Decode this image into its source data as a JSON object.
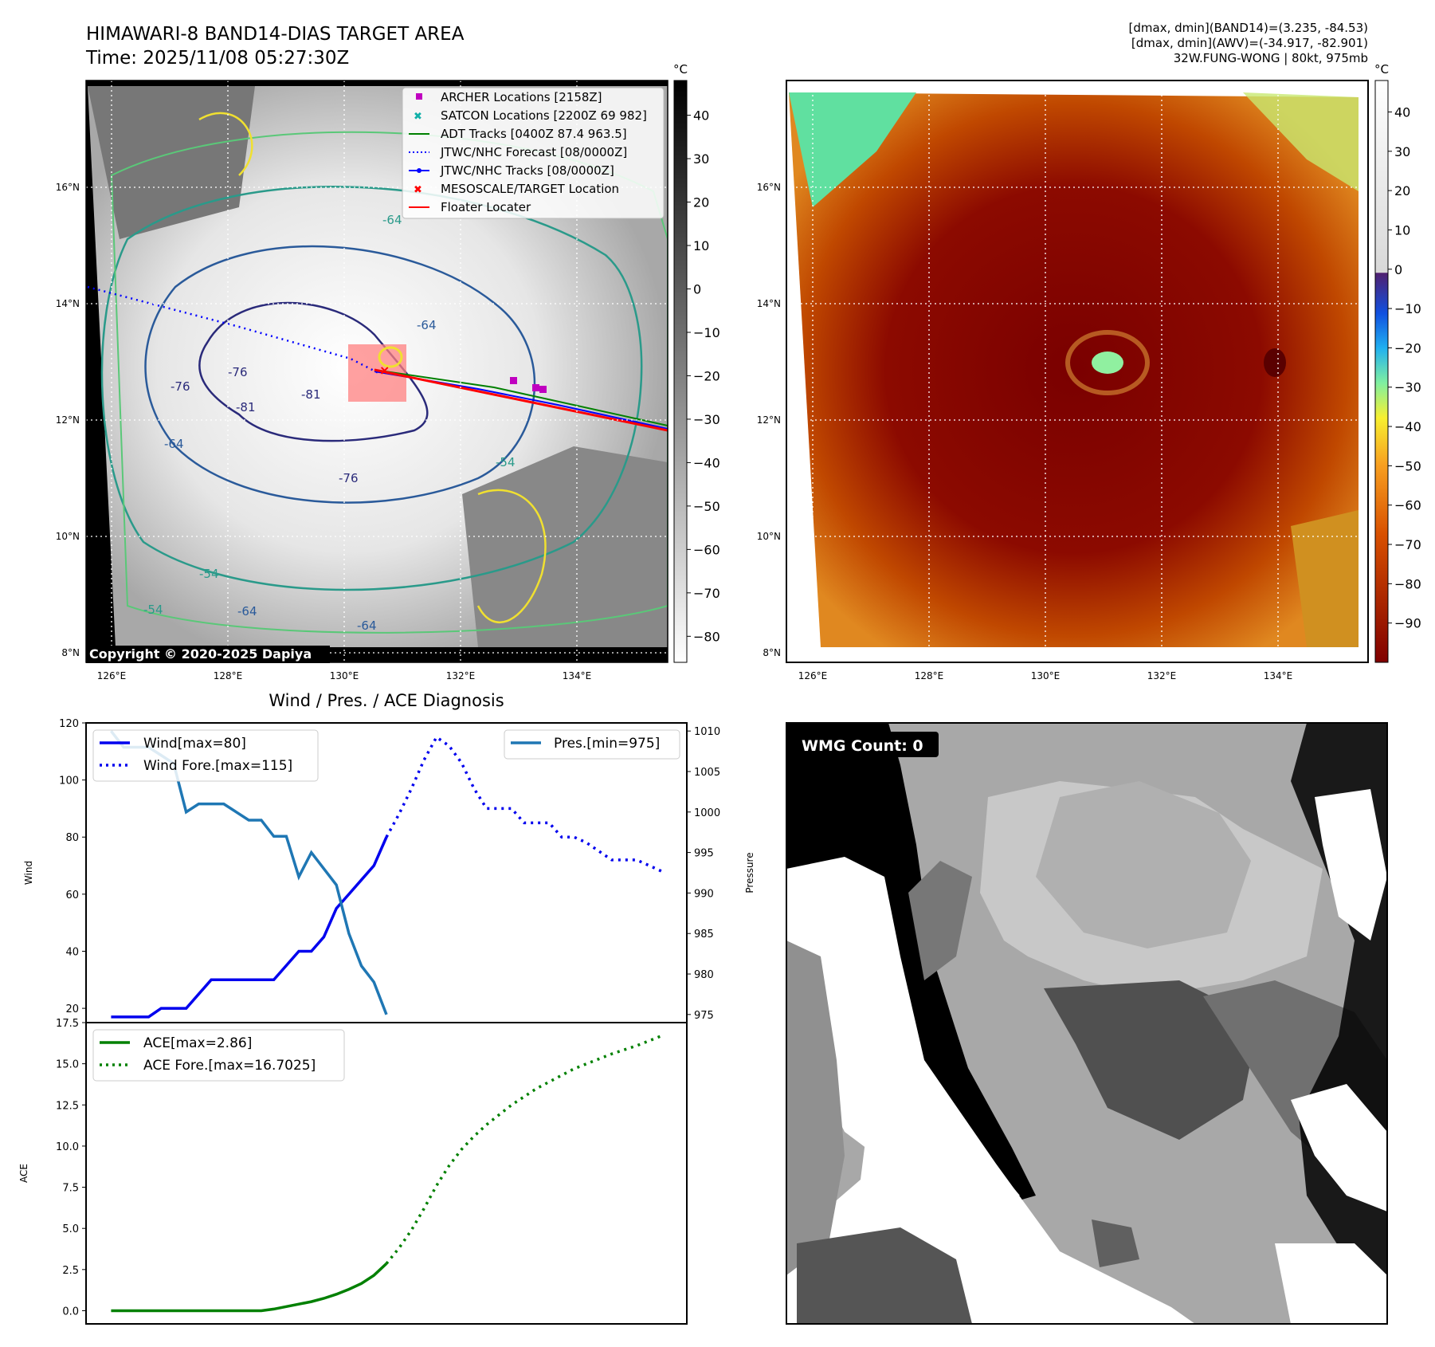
{
  "header": {
    "title_line1": "HIMAWARI-8 BAND14-DIAS TARGET AREA",
    "title_line2": "Time: 2025/11/08 05:27:30Z",
    "stats_line1": "[dmax, dmin](BAND14)=(3.235, -84.53)",
    "stats_line2": "[dmax, dmin](AWV)=(-34.917, -82.901)",
    "stats_line3": "32W.FUNG-WONG | 80kt, 975mb"
  },
  "map_axes": {
    "lon_ticks": [
      "126°E",
      "128°E",
      "130°E",
      "132°E",
      "134°E"
    ],
    "lat_ticks": [
      "16°N",
      "14°N",
      "12°N",
      "10°N",
      "8°N"
    ],
    "copyright": "Copyright © 2020-2025 Dapiya",
    "contour_labels": [
      "-64",
      "-64",
      "-76",
      "-81",
      "-81",
      "-76",
      "-76",
      "-64",
      "-54",
      "-54",
      "-64",
      "-64",
      "-54"
    ]
  },
  "legend": {
    "items": [
      {
        "label": "ARCHER Locations [2158Z]",
        "color": "#c000c0",
        "kind": "square"
      },
      {
        "label": "SATCON Locations [2200Z 69 982]",
        "color": "#10b0a8",
        "kind": "x"
      },
      {
        "label": "ADT Tracks [0400Z 87.4 963.5]",
        "color": "#008000",
        "kind": "line"
      },
      {
        "label": "JTWC/NHC Forecast [08/0000Z]",
        "color": "#0000ff",
        "kind": "dotted"
      },
      {
        "label": "JTWC/NHC Tracks [08/0000Z]",
        "color": "#0000ff",
        "kind": "dotline"
      },
      {
        "label": "MESOSCALE/TARGET Location",
        "color": "#ff0000",
        "kind": "xred"
      },
      {
        "label": "Floater Locater",
        "color": "#ff0000",
        "kind": "line"
      }
    ]
  },
  "colorbar_left": {
    "unit": "°C",
    "ticks": [
      "40",
      "30",
      "20",
      "10",
      "0",
      "−10",
      "−20",
      "−30",
      "−40",
      "−50",
      "−60",
      "−70",
      "−80"
    ]
  },
  "colorbar_right": {
    "unit": "°C",
    "ticks": [
      "40",
      "30",
      "20",
      "10",
      "0",
      "−10",
      "−20",
      "−30",
      "−40",
      "−50",
      "−60",
      "−70",
      "−80",
      "−90"
    ]
  },
  "diagnosis": {
    "title": "Wind / Pres. / ACE Diagnosis",
    "ylabel_wind": "Wind",
    "ylabel_pres": "Pressure",
    "ylabel_ace": "ACE",
    "legend_wind": "Wind[max=80]",
    "legend_wind_fore": "Wind Fore.[max=115]",
    "legend_pres": "Pres.[min=975]",
    "legend_ace": "ACE[max=2.86]",
    "legend_ace_fore": "ACE Fore.[max=16.7025]",
    "wind_ticks": [
      "20",
      "40",
      "60",
      "80",
      "100",
      "120"
    ],
    "pres_ticks": [
      "975",
      "980",
      "985",
      "990",
      "995",
      "1000",
      "1005",
      "1010"
    ],
    "ace_ticks": [
      "0.0",
      "2.5",
      "5.0",
      "7.5",
      "10.0",
      "12.5",
      "15.0",
      "17.5"
    ]
  },
  "wmg": {
    "label": "WMG Count: 0"
  },
  "colors": {
    "wind": "#0000ee",
    "pres": "#1f77b4",
    "ace": "#008000"
  },
  "chart_data": [
    {
      "type": "line",
      "title": "Wind / Pres. / ACE Diagnosis",
      "ylabel": "Wind",
      "ylim": [
        15,
        120
      ],
      "series": [
        {
          "name": "Wind[max=80]",
          "style": "solid",
          "x": [
            0,
            1,
            2,
            3,
            4,
            5,
            6,
            7,
            8,
            9,
            10,
            11,
            12,
            13,
            14,
            15,
            16,
            17,
            18,
            19,
            20,
            21,
            22
          ],
          "values": [
            17,
            17,
            17,
            17,
            20,
            20,
            20,
            25,
            30,
            30,
            30,
            30,
            30,
            30,
            35,
            40,
            40,
            45,
            55,
            60,
            65,
            70,
            80
          ]
        },
        {
          "name": "Wind Fore.[max=115]",
          "style": "dotted",
          "x": [
            22,
            23,
            24,
            25,
            26,
            27,
            28,
            29,
            30,
            31,
            32,
            33,
            34,
            35,
            36,
            37,
            38,
            39,
            40,
            41,
            42,
            43,
            44
          ],
          "values": [
            80,
            88,
            97,
            107,
            115,
            112,
            106,
            97,
            90,
            90,
            90,
            85,
            85,
            85,
            80,
            80,
            78,
            75,
            72,
            72,
            72,
            70,
            68
          ]
        }
      ]
    },
    {
      "type": "line",
      "ylabel": "Pressure",
      "ylim": [
        974,
        1011
      ],
      "series": [
        {
          "name": "Pres.[min=975]",
          "style": "solid",
          "x": [
            0,
            1,
            2,
            3,
            4,
            5,
            6,
            7,
            8,
            9,
            10,
            11,
            12,
            13,
            14,
            15,
            16,
            17,
            18,
            19,
            20,
            21,
            22
          ],
          "values": [
            1010,
            1008,
            1008,
            1008,
            1007,
            1006,
            1000,
            1001,
            1001,
            1001,
            1000,
            999,
            999,
            997,
            997,
            992,
            995,
            993,
            991,
            985,
            981,
            979,
            975
          ]
        }
      ]
    },
    {
      "type": "line",
      "ylabel": "ACE",
      "ylim": [
        -0.8,
        17.5
      ],
      "series": [
        {
          "name": "ACE[max=2.86]",
          "style": "solid",
          "x": [
            0,
            2,
            4,
            6,
            8,
            10,
            12,
            13,
            14,
            15,
            16,
            17,
            18,
            19,
            20,
            21,
            22
          ],
          "values": [
            0,
            0,
            0,
            0,
            0,
            0,
            0,
            0.1,
            0.25,
            0.4,
            0.55,
            0.75,
            1.0,
            1.3,
            1.65,
            2.15,
            2.86
          ]
        },
        {
          "name": "ACE Fore.[max=16.7025]",
          "style": "dotted",
          "x": [
            22,
            23,
            24,
            25,
            26,
            27,
            28,
            29,
            30,
            31,
            32,
            33,
            34,
            35,
            36,
            37,
            38,
            39,
            40,
            41,
            42,
            43,
            44
          ],
          "values": [
            2.86,
            3.8,
            4.9,
            6.2,
            7.6,
            8.8,
            9.8,
            10.6,
            11.3,
            11.9,
            12.5,
            13.0,
            13.5,
            13.9,
            14.3,
            14.7,
            15.0,
            15.3,
            15.6,
            15.85,
            16.1,
            16.4,
            16.7025
          ]
        }
      ]
    }
  ]
}
